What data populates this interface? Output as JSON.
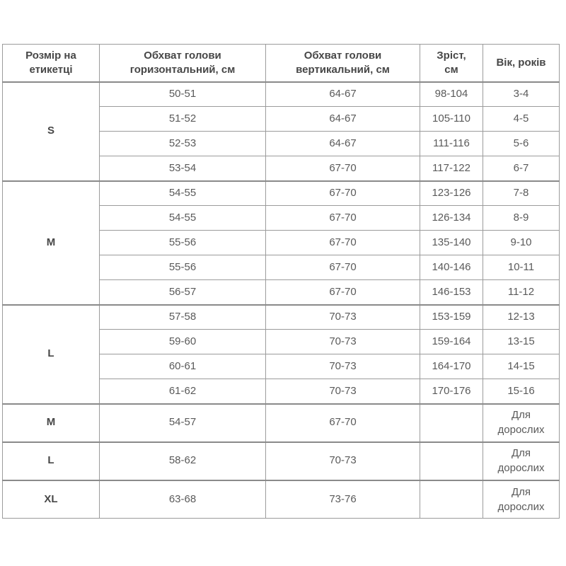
{
  "colors": {
    "border": "#9b9b9b",
    "border_heavy": "#8a8a8a",
    "text": "#5a5a5a",
    "heading_text": "#474747"
  },
  "table": {
    "headers": [
      "Розмір на етикетці",
      "Обхват голови горизонтальний, см",
      "Обхват голови вертикальний, см",
      "Зріст, см",
      "Вік, років"
    ],
    "groups": [
      {
        "size": "S",
        "adult": false,
        "rows": [
          [
            "50-51",
            "64-67",
            "98-104",
            "3-4"
          ],
          [
            "51-52",
            "64-67",
            "105-110",
            "4-5"
          ],
          [
            "52-53",
            "64-67",
            "111-116",
            "5-6"
          ],
          [
            "53-54",
            "67-70",
            "117-122",
            "6-7"
          ]
        ]
      },
      {
        "size": "M",
        "adult": false,
        "rows": [
          [
            "54-55",
            "67-70",
            "123-126",
            "7-8"
          ],
          [
            "54-55",
            "67-70",
            "126-134",
            "8-9"
          ],
          [
            "55-56",
            "67-70",
            "135-140",
            "9-10"
          ],
          [
            "55-56",
            "67-70",
            "140-146",
            "10-11"
          ],
          [
            "56-57",
            "67-70",
            "146-153",
            "11-12"
          ]
        ]
      },
      {
        "size": "L",
        "adult": false,
        "rows": [
          [
            "57-58",
            "70-73",
            "153-159",
            "12-13"
          ],
          [
            "59-60",
            "70-73",
            "159-164",
            "13-15"
          ],
          [
            "60-61",
            "70-73",
            "164-170",
            "14-15"
          ],
          [
            "61-62",
            "70-73",
            "170-176",
            "15-16"
          ]
        ]
      },
      {
        "size": "M",
        "adult": true,
        "rows": [
          [
            "54-57",
            "67-70",
            "",
            "Для дорослих"
          ]
        ]
      },
      {
        "size": "L",
        "adult": true,
        "rows": [
          [
            "58-62",
            "70-73",
            "",
            "Для дорослих"
          ]
        ]
      },
      {
        "size": "XL",
        "adult": true,
        "rows": [
          [
            "63-68",
            "73-76",
            "",
            "Для дорослих"
          ]
        ]
      }
    ]
  }
}
